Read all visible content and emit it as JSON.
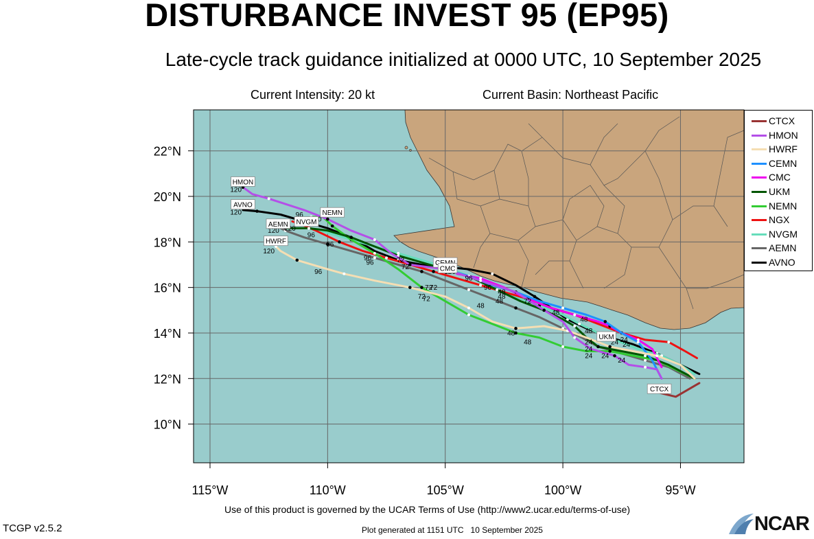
{
  "title": "DISTURBANCE INVEST 95 (EP95)",
  "subtitle": "Late-cycle track guidance initialized at 0000 UTC, 10 September 2025",
  "current_intensity": "Current Intensity: 20 kt",
  "current_basin": "Current Basin: Northeast Pacific",
  "terms_text": "Use of this product is governed by the UCAR Terms of Use (http://www2.ucar.edu/terms-of-use)",
  "version_text": "TCGP v2.5.2",
  "generated_text": "Plot generated at 1151 UTC   10 September 2025",
  "logo_text": "NCAR",
  "colors": {
    "ocean": "#99cccc",
    "land": "#c9a57d",
    "grid": "#666666",
    "border": "#333333"
  },
  "map": {
    "lon_range": [
      -115.7,
      -92.3
    ],
    "lat_range": [
      8.3,
      23.8
    ],
    "lon_ticks": [
      -115,
      -110,
      -105,
      -100,
      -95
    ],
    "lon_tick_labels": [
      "115°W",
      "110°W",
      "105°W",
      "100°W",
      "95°W"
    ],
    "lat_ticks": [
      10,
      12,
      14,
      16,
      18,
      20,
      22
    ],
    "lat_tick_labels": [
      "10°N",
      "12°N",
      "14°N",
      "16°N",
      "18°N",
      "20°N",
      "22°N"
    ]
  },
  "legend": [
    {
      "name": "CTCX",
      "color": "#993333"
    },
    {
      "name": "HMON",
      "color": "#b44fe8"
    },
    {
      "name": "HWRF",
      "color": "#f5deb3"
    },
    {
      "name": "CEMN",
      "color": "#1e90ff"
    },
    {
      "name": "CMC",
      "color": "#ee00ee"
    },
    {
      "name": "UKM",
      "color": "#005500"
    },
    {
      "name": "NEMN",
      "color": "#33cc33"
    },
    {
      "name": "NGX",
      "color": "#ee1111"
    },
    {
      "name": "NVGM",
      "color": "#66ddbb"
    },
    {
      "name": "AEMN",
      "color": "#666666"
    },
    {
      "name": "AVNO",
      "color": "#000000"
    }
  ],
  "tracks": [
    {
      "name": "CTCX",
      "label": "CTCX",
      "points": [
        [
          -94.2,
          11.8
        ],
        [
          -95.2,
          11.2
        ],
        [
          -96.0,
          11.4
        ]
      ]
    },
    {
      "name": "HMON",
      "label": "HMON",
      "points": [
        [
          -95.8,
          12.0
        ],
        [
          -96.0,
          12.4
        ],
        [
          -96.5,
          12.5
        ],
        [
          -97.2,
          12.6
        ],
        [
          -97.8,
          13.0
        ],
        [
          -98.8,
          13.3
        ],
        [
          -99.5,
          13.8
        ],
        [
          -100.0,
          14.5
        ],
        [
          -100.8,
          15.0
        ],
        [
          -102.0,
          15.8
        ],
        [
          -103.5,
          16.3
        ],
        [
          -105.0,
          16.8
        ],
        [
          -106.5,
          17.0
        ],
        [
          -107.3,
          17.5
        ],
        [
          -108.0,
          18.1
        ],
        [
          -109.0,
          18.5
        ],
        [
          -110.0,
          19.0
        ],
        [
          -111.0,
          19.4
        ],
        [
          -112.5,
          19.9
        ],
        [
          -113.2,
          20.1
        ],
        [
          -113.6,
          20.4
        ]
      ]
    },
    {
      "name": "HWRF",
      "label": "HWRF",
      "points": [
        [
          -94.4,
          12.0
        ],
        [
          -95.0,
          12.6
        ],
        [
          -96.0,
          13.0
        ],
        [
          -97.0,
          13.2
        ],
        [
          -98.0,
          13.4
        ],
        [
          -99.0,
          13.8
        ],
        [
          -99.8,
          14.1
        ],
        [
          -100.8,
          14.3
        ],
        [
          -102.0,
          14.2
        ],
        [
          -103.0,
          14.5
        ],
        [
          -104.0,
          15.1
        ],
        [
          -105.0,
          15.6
        ],
        [
          -106.5,
          16.0
        ],
        [
          -108.0,
          16.3
        ],
        [
          -109.3,
          16.6
        ],
        [
          -110.0,
          16.8
        ],
        [
          -111.3,
          17.2
        ],
        [
          -112.0,
          17.6
        ],
        [
          -112.2,
          17.8
        ]
      ]
    },
    {
      "name": "CEMN",
      "label": "CEMN",
      "points": [
        [
          -95.8,
          12.0
        ],
        [
          -96.2,
          12.8
        ],
        [
          -96.8,
          13.6
        ],
        [
          -97.5,
          14.0
        ],
        [
          -98.2,
          14.5
        ],
        [
          -99.0,
          14.8
        ],
        [
          -100.0,
          15.1
        ],
        [
          -101.0,
          15.4
        ],
        [
          -102.0,
          15.8
        ],
        [
          -103.0,
          16.1
        ],
        [
          -104.0,
          16.5
        ],
        [
          -105.0,
          16.8
        ]
      ]
    },
    {
      "name": "CMC",
      "label": "CMC",
      "points": [
        [
          -95.8,
          12.5
        ],
        [
          -96.2,
          13.3
        ],
        [
          -96.8,
          13.7
        ],
        [
          -97.5,
          14.0
        ],
        [
          -98.0,
          14.3
        ],
        [
          -98.5,
          14.5
        ],
        [
          -99.5,
          14.8
        ],
        [
          -100.5,
          15.1
        ],
        [
          -101.5,
          15.5
        ],
        [
          -102.5,
          16.0
        ],
        [
          -103.5,
          16.4
        ],
        [
          -104.5,
          16.6
        ]
      ]
    },
    {
      "name": "UKM",
      "label": "UKM",
      "points": [
        [
          -94.4,
          12.0
        ],
        [
          -95.5,
          12.6
        ],
        [
          -96.5,
          13.0
        ],
        [
          -97.5,
          13.2
        ],
        [
          -98.5,
          13.4
        ],
        [
          -99.0,
          13.8
        ],
        [
          -99.5,
          14.3
        ],
        [
          -100.0,
          14.6
        ],
        [
          -100.8,
          15.0
        ],
        [
          -101.8,
          15.4
        ],
        [
          -102.8,
          15.9
        ],
        [
          -103.8,
          16.4
        ],
        [
          -105.0,
          16.8
        ],
        [
          -106.0,
          17.1
        ],
        [
          -107.0,
          17.4
        ],
        [
          -108.0,
          17.8
        ],
        [
          -109.0,
          18.2
        ],
        [
          -110.0,
          18.5
        ],
        [
          -110.8,
          18.6
        ],
        [
          -111.5,
          18.6
        ],
        [
          -111.8,
          18.6
        ]
      ]
    },
    {
      "name": "NEMN",
      "label": "NEMN",
      "points": [
        [
          -94.4,
          12.0
        ],
        [
          -95.0,
          12.3
        ],
        [
          -96.0,
          12.8
        ],
        [
          -97.0,
          13.0
        ],
        [
          -98.0,
          13.2
        ],
        [
          -99.0,
          13.2
        ],
        [
          -100.0,
          13.4
        ],
        [
          -101.0,
          13.8
        ],
        [
          -102.0,
          14.0
        ],
        [
          -103.0,
          14.4
        ],
        [
          -104.0,
          14.8
        ],
        [
          -105.0,
          15.4
        ],
        [
          -106.0,
          16.0
        ],
        [
          -107.0,
          16.8
        ],
        [
          -108.0,
          17.5
        ],
        [
          -109.0,
          18.1
        ],
        [
          -109.8,
          18.7
        ],
        [
          -110.2,
          19.1
        ],
        [
          -110.7,
          19.1
        ]
      ]
    },
    {
      "name": "NGX",
      "label": "",
      "points": [
        [
          -94.3,
          12.9
        ],
        [
          -94.8,
          13.2
        ],
        [
          -95.5,
          13.6
        ],
        [
          -96.5,
          13.7
        ],
        [
          -97.5,
          14.0
        ],
        [
          -98.5,
          14.4
        ],
        [
          -99.5,
          14.8
        ],
        [
          -100.5,
          15.1
        ],
        [
          -101.5,
          15.5
        ],
        [
          -102.5,
          15.8
        ],
        [
          -103.5,
          16.1
        ],
        [
          -104.5,
          16.4
        ],
        [
          -105.5,
          16.7
        ],
        [
          -106.5,
          17.0
        ],
        [
          -107.5,
          17.3
        ],
        [
          -108.5,
          17.6
        ],
        [
          -109.5,
          18.0
        ],
        [
          -110.5,
          18.5
        ],
        [
          -111.2,
          18.8
        ],
        [
          -111.5,
          18.9
        ]
      ]
    },
    {
      "name": "NVGM",
      "label": "NVGM",
      "points": [
        [
          -94.4,
          12.2
        ],
        [
          -95.0,
          12.6
        ],
        [
          -95.8,
          13.0
        ],
        [
          -96.8,
          13.3
        ],
        [
          -97.8,
          13.7
        ],
        [
          -98.5,
          14.0
        ],
        [
          -99.3,
          14.4
        ],
        [
          -100.0,
          14.8
        ],
        [
          -101.0,
          15.2
        ],
        [
          -102.0,
          15.6
        ],
        [
          -103.0,
          16.0
        ],
        [
          -104.0,
          16.5
        ],
        [
          -105.0,
          16.9
        ],
        [
          -106.0,
          17.2
        ],
        [
          -107.0,
          17.5
        ],
        [
          -108.0,
          17.8
        ],
        [
          -109.0,
          18.1
        ],
        [
          -110.0,
          18.4
        ],
        [
          -110.8,
          18.6
        ]
      ]
    },
    {
      "name": "AEMN",
      "label": "AEMN",
      "points": [
        [
          -94.6,
          12.0
        ],
        [
          -95.5,
          12.5
        ],
        [
          -96.5,
          12.8
        ],
        [
          -97.5,
          13.1
        ],
        [
          -98.5,
          13.4
        ],
        [
          -99.2,
          13.8
        ],
        [
          -100.0,
          14.2
        ],
        [
          -101.0,
          14.7
        ],
        [
          -102.0,
          15.1
        ],
        [
          -103.0,
          15.5
        ],
        [
          -104.0,
          15.9
        ],
        [
          -105.0,
          16.3
        ],
        [
          -106.0,
          16.7
        ],
        [
          -107.0,
          17.0
        ],
        [
          -108.0,
          17.3
        ],
        [
          -109.0,
          17.6
        ],
        [
          -110.0,
          17.9
        ],
        [
          -111.0,
          18.2
        ],
        [
          -111.8,
          18.5
        ],
        [
          -112.0,
          18.6
        ]
      ]
    },
    {
      "name": "AVNO",
      "label": "AVNO",
      "points": [
        [
          -94.2,
          12.2
        ],
        [
          -95.0,
          12.6
        ],
        [
          -96.0,
          13.1
        ],
        [
          -97.0,
          13.5
        ],
        [
          -98.0,
          13.8
        ],
        [
          -99.0,
          14.2
        ],
        [
          -99.8,
          14.6
        ],
        [
          -100.5,
          15.1
        ],
        [
          -101.2,
          15.6
        ],
        [
          -102.0,
          16.1
        ],
        [
          -103.0,
          16.6
        ],
        [
          -104.0,
          16.8
        ],
        [
          -105.0,
          16.9
        ],
        [
          -106.0,
          17.0
        ],
        [
          -107.0,
          17.2
        ],
        [
          -108.0,
          17.6
        ],
        [
          -109.0,
          18.2
        ],
        [
          -110.0,
          18.6
        ],
        [
          -111.0,
          18.9
        ],
        [
          -112.0,
          19.2
        ],
        [
          -113.0,
          19.35
        ],
        [
          -113.6,
          19.4
        ]
      ]
    }
  ],
  "hour_labels": [
    {
      "text": "120",
      "lon": -113.9,
      "lat": 20.2
    },
    {
      "text": "120",
      "lon": -113.9,
      "lat": 19.2
    },
    {
      "text": "120",
      "lon": -112.3,
      "lat": 18.4
    },
    {
      "text": "120",
      "lon": -111.6,
      "lat": 18.5
    },
    {
      "text": "120",
      "lon": -110.5,
      "lat": 18.9
    },
    {
      "text": "120",
      "lon": -112.5,
      "lat": 17.5
    },
    {
      "text": "120",
      "lon": -104.8,
      "lat": 16.6
    },
    {
      "text": "96",
      "lon": -111.2,
      "lat": 19.1
    },
    {
      "text": "96",
      "lon": -110.7,
      "lat": 18.7
    },
    {
      "text": "96",
      "lon": -110.7,
      "lat": 18.2
    },
    {
      "text": "96",
      "lon": -109.9,
      "lat": 17.8
    },
    {
      "text": "96",
      "lon": -108.3,
      "lat": 17.2
    },
    {
      "text": "96",
      "lon": -108.2,
      "lat": 17.0
    },
    {
      "text": "96",
      "lon": -110.4,
      "lat": 16.6
    },
    {
      "text": "96",
      "lon": -104.0,
      "lat": 16.3
    },
    {
      "text": "96",
      "lon": -103.2,
      "lat": 15.9
    },
    {
      "text": "72",
      "lon": -106.9,
      "lat": 17.1
    },
    {
      "text": "72",
      "lon": -106.7,
      "lat": 16.8
    },
    {
      "text": "72",
      "lon": -105.7,
      "lat": 15.9
    },
    {
      "text": "72",
      "lon": -105.5,
      "lat": 15.9
    },
    {
      "text": "72",
      "lon": -106.0,
      "lat": 15.5
    },
    {
      "text": "72",
      "lon": -105.8,
      "lat": 15.4
    },
    {
      "text": "72",
      "lon": -101.5,
      "lat": 15.3
    },
    {
      "text": "48",
      "lon": -102.6,
      "lat": 15.7
    },
    {
      "text": "48",
      "lon": -102.6,
      "lat": 15.5
    },
    {
      "text": "48",
      "lon": -102.7,
      "lat": 15.3
    },
    {
      "text": "48",
      "lon": -103.5,
      "lat": 15.1
    },
    {
      "text": "48",
      "lon": -100.3,
      "lat": 14.8
    },
    {
      "text": "48",
      "lon": -99.1,
      "lat": 14.5
    },
    {
      "text": "48",
      "lon": -98.9,
      "lat": 14.0
    },
    {
      "text": "48",
      "lon": -102.2,
      "lat": 13.9
    },
    {
      "text": "48",
      "lon": -101.5,
      "lat": 13.5
    },
    {
      "text": "24",
      "lon": -98.9,
      "lat": 13.5
    },
    {
      "text": "24",
      "lon": -98.9,
      "lat": 13.2
    },
    {
      "text": "24",
      "lon": -98.9,
      "lat": 12.9
    },
    {
      "text": "24",
      "lon": -97.8,
      "lat": 13.5
    },
    {
      "text": "24",
      "lon": -97.4,
      "lat": 13.6
    },
    {
      "text": "24",
      "lon": -97.3,
      "lat": 13.4
    },
    {
      "text": "24",
      "lon": -98.2,
      "lat": 12.9
    },
    {
      "text": "24",
      "lon": -97.5,
      "lat": 12.7
    }
  ],
  "track_labels": [
    {
      "text": "HMON",
      "lon": -113.6,
      "lat": 20.65
    },
    {
      "text": "AVNO",
      "lon": -113.6,
      "lat": 19.65
    },
    {
      "text": "NEMN",
      "lon": -109.8,
      "lat": 19.3
    },
    {
      "text": "NVGM",
      "lon": -110.9,
      "lat": 18.9
    },
    {
      "text": "AEMN",
      "lon": -112.1,
      "lat": 18.8
    },
    {
      "text": "HWRF",
      "lon": -112.2,
      "lat": 18.05
    },
    {
      "text": "CEMN",
      "lon": -105.0,
      "lat": 17.1
    },
    {
      "text": "CMC",
      "lon": -104.9,
      "lat": 16.85
    },
    {
      "text": "UKM",
      "lon": -98.15,
      "lat": 13.85
    },
    {
      "text": "CTCX",
      "lon": -95.9,
      "lat": 11.55
    }
  ]
}
